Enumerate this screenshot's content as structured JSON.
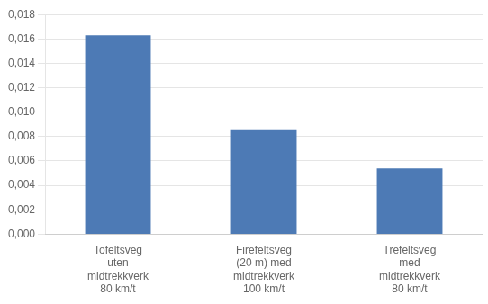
{
  "chart_data": {
    "type": "bar",
    "categories": [
      "Tofeltsveg\nuten\nmidtrekkverk\n80 km/t",
      "Firefeltsveg\n(20 m) med\nmidtrekkverk\n100 km/t",
      "Trefeltsveg\nmed\nmidtrekkverk\n80 km/t"
    ],
    "values": [
      0.0163,
      0.0086,
      0.0054
    ],
    "color": "#4d7ab5",
    "ylim": [
      0,
      0.018
    ],
    "yticks": [
      {
        "value": 0.0,
        "label": "0,000"
      },
      {
        "value": 0.002,
        "label": "0,002"
      },
      {
        "value": 0.004,
        "label": "0,004"
      },
      {
        "value": 0.006,
        "label": "0,006"
      },
      {
        "value": 0.008,
        "label": "0,008"
      },
      {
        "value": 0.01,
        "label": "0,010"
      },
      {
        "value": 0.012,
        "label": "0,012"
      },
      {
        "value": 0.014,
        "label": "0,014"
      },
      {
        "value": 0.016,
        "label": "0,016"
      },
      {
        "value": 0.018,
        "label": "0,018"
      }
    ],
    "grid": true
  }
}
